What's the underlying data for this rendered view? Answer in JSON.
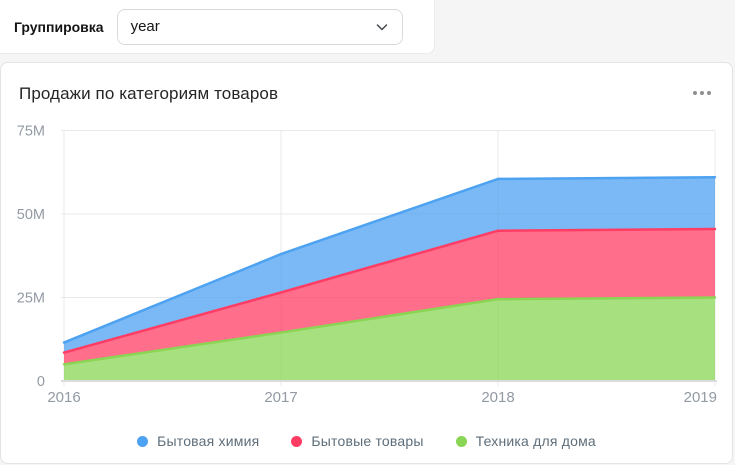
{
  "selector": {
    "label": "Группировка",
    "value": "year",
    "chevron_icon": "chevron-down-icon"
  },
  "widget": {
    "menu_icon": "ellipsis-horizontal-icon"
  },
  "chart_data": {
    "type": "area",
    "stacked": true,
    "title": "Продажи по категориям товаров",
    "x_categories": [
      "2016",
      "2017",
      "2018",
      "2019"
    ],
    "series": [
      {
        "name": "Бытовая химия",
        "color": "#4DA2F1",
        "values": [
          3.0,
          11.5,
          15.5,
          15.5
        ]
      },
      {
        "name": "Бытовые товары",
        "color": "#FF3D64",
        "values": [
          3.5,
          12.0,
          20.5,
          20.5
        ]
      },
      {
        "name": "Техника для дома",
        "color": "#8AD554",
        "values": [
          5.0,
          14.5,
          24.5,
          25.0
        ]
      }
    ],
    "stack_bottom_to_top": [
      "Техника для дома",
      "Бытовые товары",
      "Бытовая химия"
    ],
    "stacked_totals": [
      11.5,
      38.0,
      60.5,
      61.0
    ],
    "y_axis": {
      "ticks": [
        0,
        25,
        50,
        75
      ],
      "tick_labels": [
        "0",
        "25M",
        "50M",
        "75M"
      ],
      "min": 0,
      "max": 75
    },
    "unit": "M",
    "fill_opacity": 0.75,
    "grid": true,
    "legend_position": "bottom",
    "grid_color": "#e9e9e9",
    "axis_line_color": "#dcdcdc",
    "axis_text_color": "#939aa3"
  }
}
